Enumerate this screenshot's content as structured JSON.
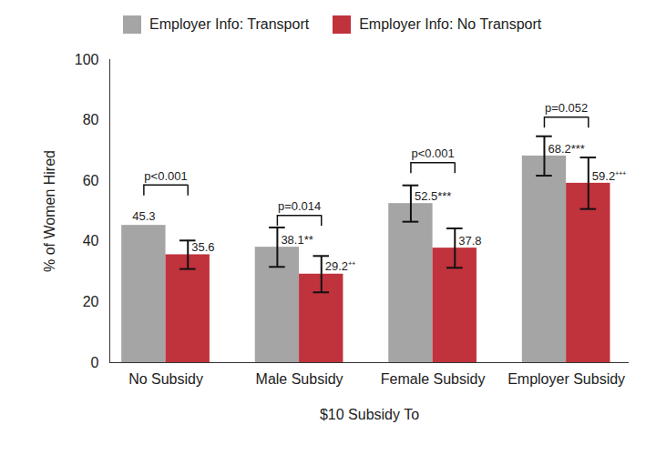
{
  "chart_data": {
    "type": "bar",
    "x_label": "$10 Subsidy To",
    "y_label": "% of Women Hired",
    "categories": [
      "No Subsidy",
      "Male Subsidy",
      "Female Subsidy",
      "Employer Subsidy"
    ],
    "series": [
      {
        "name": "Employer Info: Transport",
        "color": "#a5a5a5",
        "values": [
          45.3,
          38.1,
          52.5,
          68.2
        ],
        "value_labels": [
          "45.3",
          "38.1**",
          "52.5***",
          "68.2***"
        ],
        "error_low": [
          null,
          31.6,
          46.5,
          61.7
        ],
        "error_high": [
          null,
          44.6,
          58.5,
          74.7
        ]
      },
      {
        "name": "Employer Info: No Transport",
        "color": "#c0323c",
        "values": [
          35.6,
          29.2,
          37.8,
          59.2
        ],
        "value_labels": [
          "35.6",
          "29.2⁺⁺",
          "37.8",
          "59.2⁺⁺⁺"
        ],
        "error_low": [
          30.9,
          23.2,
          31.3,
          50.7
        ],
        "error_high": [
          40.3,
          35.2,
          44.3,
          67.7
        ]
      }
    ],
    "annotations": [
      {
        "text": "p<0.001",
        "category": "No Subsidy",
        "y": 58.6
      },
      {
        "text": "p=0.014",
        "category": "Male Subsidy",
        "y": 48.6
      },
      {
        "text": "p<0.001",
        "category": "Female Subsidy",
        "y": 66
      },
      {
        "text": "p=0.052",
        "category": "Employer Subsidy",
        "y": 81
      }
    ],
    "ylim": [
      0,
      100
    ],
    "yticks": [
      0,
      20,
      40,
      60,
      80,
      100
    ],
    "grid": false,
    "legend": "top",
    "data_labels": true
  }
}
